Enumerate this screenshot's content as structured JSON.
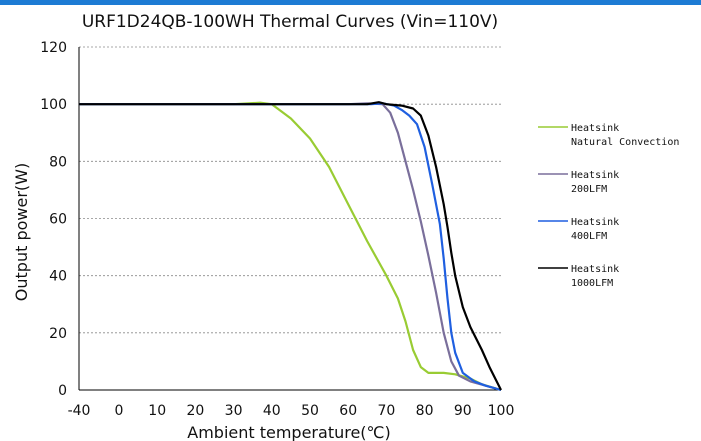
{
  "chart_data": {
    "type": "line",
    "title": "URF1D24QB-100WH Thermal Curves (Vin=110V)",
    "xlabel": "Ambient temperature(℃)",
    "ylabel": "Output power(W)",
    "xlim": [
      -40,
      100
    ],
    "ylim": [
      0,
      120
    ],
    "x_ticks": [
      "-40",
      "0",
      "10",
      "20",
      "30",
      "40",
      "50",
      "60",
      "70",
      "80",
      "90",
      "100"
    ],
    "y_ticks": [
      "0",
      "20",
      "40",
      "60",
      "80",
      "100",
      "120"
    ],
    "grid": "horizontal dashed",
    "legend_position": "right",
    "series": [
      {
        "name": "Heatsink\nNatural Convection",
        "color": "#99cc33",
        "points": [
          [
            -40,
            100
          ],
          [
            30,
            100
          ],
          [
            37,
            100.5
          ],
          [
            40,
            100
          ],
          [
            45,
            95
          ],
          [
            50,
            88
          ],
          [
            55,
            78
          ],
          [
            60,
            65
          ],
          [
            65,
            52
          ],
          [
            70,
            40
          ],
          [
            73,
            32
          ],
          [
            75,
            24
          ],
          [
            77,
            14
          ],
          [
            79,
            8
          ],
          [
            81,
            6
          ],
          [
            85,
            6
          ],
          [
            88,
            5.5
          ],
          [
            92,
            4
          ],
          [
            95,
            2
          ],
          [
            100,
            0
          ]
        ]
      },
      {
        "name": "Heatsink\n200LFM",
        "color": "#7a6f9b",
        "points": [
          [
            -40,
            100
          ],
          [
            60,
            100
          ],
          [
            65,
            100.3
          ],
          [
            69,
            100
          ],
          [
            71,
            97
          ],
          [
            73,
            90
          ],
          [
            75,
            80
          ],
          [
            77,
            70
          ],
          [
            79,
            59
          ],
          [
            81,
            47
          ],
          [
            83,
            34
          ],
          [
            85,
            20
          ],
          [
            87,
            10
          ],
          [
            89,
            5
          ],
          [
            92,
            3
          ],
          [
            96,
            1.5
          ],
          [
            100,
            0
          ]
        ]
      },
      {
        "name": "Heatsink\n400LFM",
        "color": "#1f5fe0",
        "points": [
          [
            -40,
            100
          ],
          [
            66,
            100
          ],
          [
            69,
            100.3
          ],
          [
            72,
            99.5
          ],
          [
            74,
            98
          ],
          [
            76,
            96
          ],
          [
            78,
            93
          ],
          [
            80,
            85
          ],
          [
            82,
            72
          ],
          [
            84,
            58
          ],
          [
            85,
            46
          ],
          [
            86,
            32
          ],
          [
            87,
            20
          ],
          [
            88,
            13
          ],
          [
            90,
            6
          ],
          [
            93,
            3
          ],
          [
            96,
            1.5
          ],
          [
            100,
            0
          ]
        ]
      },
      {
        "name": "Heatsink\n1000LFM",
        "color": "#000000",
        "points": [
          [
            -40,
            100
          ],
          [
            65,
            100
          ],
          [
            68,
            100.7
          ],
          [
            70,
            100
          ],
          [
            74,
            99.5
          ],
          [
            77,
            98.5
          ],
          [
            79,
            96
          ],
          [
            81,
            89
          ],
          [
            83,
            78
          ],
          [
            85,
            65
          ],
          [
            86,
            57
          ],
          [
            87,
            48
          ],
          [
            88,
            40
          ],
          [
            90,
            29
          ],
          [
            92,
            22
          ],
          [
            95,
            14
          ],
          [
            97,
            8
          ],
          [
            100,
            0
          ]
        ]
      }
    ]
  }
}
